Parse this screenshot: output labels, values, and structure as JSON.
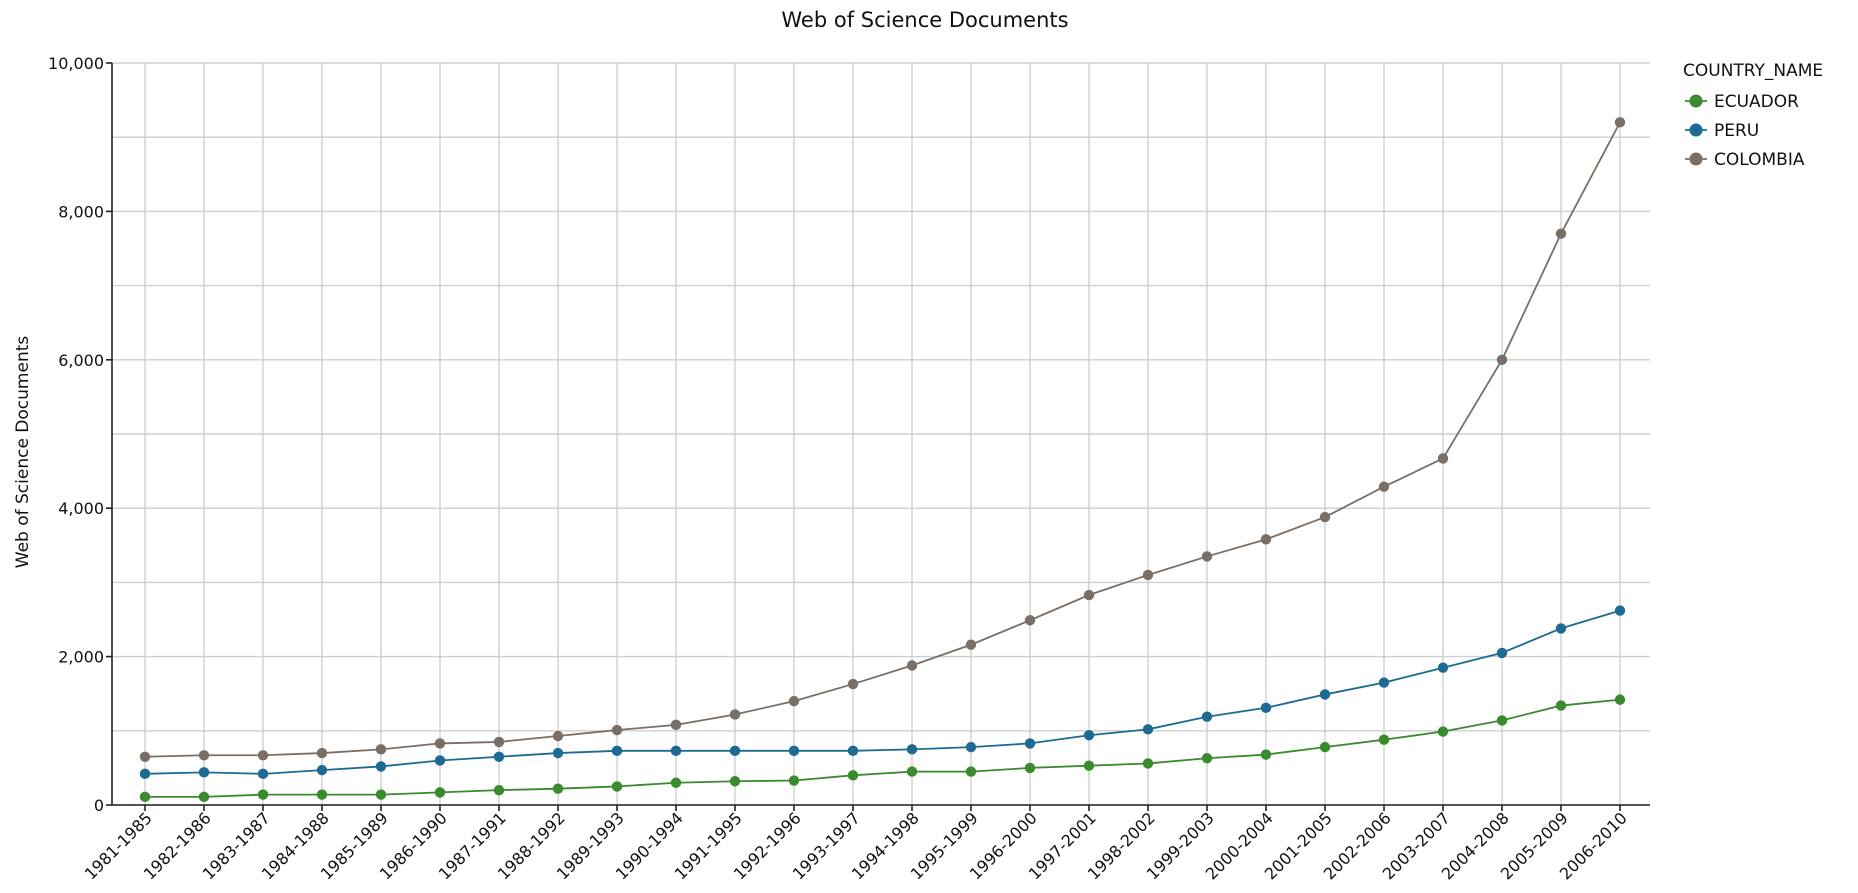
{
  "chart_data": {
    "type": "line",
    "title": "Web of Science Documents",
    "ylabel": "Web of Science Documents",
    "xlabel": "",
    "ylim": [
      0,
      10000
    ],
    "yticks": [
      0,
      2000,
      4000,
      6000,
      8000,
      10000
    ],
    "ytick_labels": [
      "0",
      "2,000",
      "4,000",
      "6,000",
      "8,000",
      "10,000"
    ],
    "grid": true,
    "legend": {
      "title": "COUNTRY_NAME",
      "placement": "top-right"
    },
    "categories": [
      "1981-1985",
      "1982-1986",
      "1983-1987",
      "1984-1988",
      "1985-1989",
      "1986-1990",
      "1987-1991",
      "1988-1992",
      "1989-1993",
      "1990-1994",
      "1991-1995",
      "1992-1996",
      "1993-1997",
      "1994-1998",
      "1995-1999",
      "1996-2000",
      "1997-2001",
      "1998-2002",
      "1999-2003",
      "2000-2004",
      "2001-2005",
      "2002-2006",
      "2003-2007",
      "2004-2008",
      "2005-2009",
      "2006-2010"
    ],
    "series": [
      {
        "name": "ECUADOR",
        "color": "#3a8a2e",
        "values": [
          110,
          110,
          140,
          140,
          140,
          170,
          200,
          220,
          250,
          300,
          320,
          330,
          400,
          450,
          450,
          500,
          530,
          560,
          630,
          680,
          780,
          880,
          990,
          1140,
          1340,
          1420
        ]
      },
      {
        "name": "PERU",
        "color": "#1d6b93",
        "values": [
          420,
          440,
          420,
          470,
          520,
          600,
          650,
          700,
          730,
          730,
          730,
          730,
          730,
          750,
          780,
          830,
          940,
          1020,
          1190,
          1310,
          1490,
          1650,
          1850,
          2050,
          2380,
          2620
        ]
      },
      {
        "name": "COLOMBIA",
        "color": "#7a6f66",
        "values": [
          650,
          670,
          670,
          700,
          750,
          830,
          850,
          930,
          1010,
          1080,
          1220,
          1400,
          1630,
          1880,
          2160,
          2490,
          2830,
          3100,
          3350,
          3580,
          3880,
          4290,
          4670,
          6000,
          7700,
          9200
        ]
      }
    ]
  }
}
